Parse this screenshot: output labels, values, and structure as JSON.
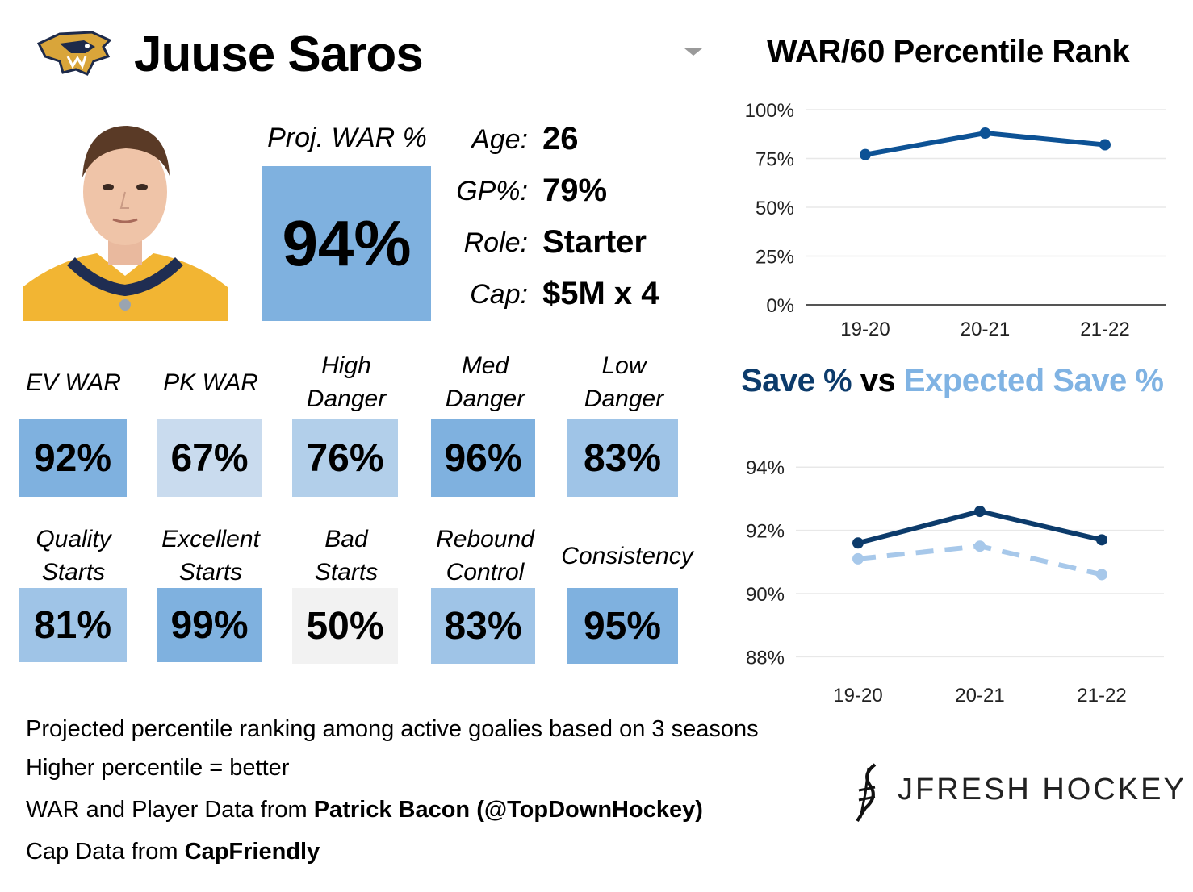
{
  "player": {
    "name": "Juuse Saros",
    "team_logo": "predators-logo",
    "photo": "player-headshot"
  },
  "projected": {
    "label": "Proj. WAR %",
    "value": "94%",
    "color": "#7fb1df"
  },
  "info": [
    {
      "label": "Age:",
      "value": "26"
    },
    {
      "label": "GP%:",
      "value": "79%"
    },
    {
      "label": "Role:",
      "value": "Starter"
    },
    {
      "label": "Cap:",
      "value": "$5M x 4"
    }
  ],
  "stats_row1": [
    {
      "label_lines": [
        "EV WAR"
      ],
      "value": "92%",
      "color": "#7fb1df"
    },
    {
      "label_lines": [
        "PK WAR"
      ],
      "value": "67%",
      "color": "#c9dbee"
    },
    {
      "label_lines": [
        "High",
        "Danger"
      ],
      "value": "76%",
      "color": "#b2cfea"
    },
    {
      "label_lines": [
        "Med",
        "Danger"
      ],
      "value": "96%",
      "color": "#7fb1df"
    },
    {
      "label_lines": [
        "Low",
        "Danger"
      ],
      "value": "83%",
      "color": "#9fc4e7"
    }
  ],
  "stats_row2": [
    {
      "label_lines": [
        "Quality",
        "Starts"
      ],
      "value": "81%",
      "color": "#9fc4e7"
    },
    {
      "label_lines": [
        "Excellent",
        "Starts"
      ],
      "value": "99%",
      "color": "#7fb1df"
    },
    {
      "label_lines": [
        "Bad",
        "Starts"
      ],
      "value": "50%",
      "color": "#f2f2f2"
    },
    {
      "label_lines": [
        "Rebound",
        "Control"
      ],
      "value": "83%",
      "color": "#9fc4e7"
    },
    {
      "label_lines": [
        "Consistency"
      ],
      "value": "95%",
      "color": "#7fb1df"
    }
  ],
  "chart_data": [
    {
      "type": "line",
      "title": "WAR/60 Percentile Rank",
      "categories": [
        "19-20",
        "20-21",
        "21-22"
      ],
      "series": [
        {
          "name": "WAR/60 Percentile",
          "values": [
            77,
            88,
            82
          ],
          "color": "#0d5295"
        }
      ],
      "ylim": [
        0,
        100
      ],
      "yticks": [
        0,
        25,
        50,
        75,
        100
      ],
      "ytick_labels": [
        "0%",
        "25%",
        "50%",
        "75%",
        "100%"
      ],
      "grid": true
    },
    {
      "type": "line",
      "title": "Save % vs Expected Save %",
      "title_parts": [
        {
          "text": "Save %",
          "color": "#0c3b6b"
        },
        {
          "text": " vs ",
          "color": "#000000"
        },
        {
          "text": "Expected Save %",
          "color": "#80b3e3"
        }
      ],
      "categories": [
        "19-20",
        "20-21",
        "21-22"
      ],
      "series": [
        {
          "name": "Save %",
          "values": [
            91.6,
            92.6,
            91.7
          ],
          "color": "#0c3b6b",
          "style": "solid"
        },
        {
          "name": "Expected Save %",
          "values": [
            91.1,
            91.5,
            90.6
          ],
          "color": "#a7c8ea",
          "style": "dashed"
        }
      ],
      "ylim": [
        87.5,
        95.0
      ],
      "yticks": [
        88,
        90,
        92,
        94
      ],
      "ytick_labels": [
        "88%",
        "90%",
        "92%",
        "94%"
      ],
      "grid": true
    }
  ],
  "footnotes": [
    {
      "text": "Projected percentile ranking among active goalies based on 3 seasons",
      "bold": ""
    },
    {
      "text": "Higher percentile = better",
      "bold": ""
    },
    {
      "text": "WAR and Player Data from ",
      "bold": "Patrick Bacon (@TopDownHockey)"
    },
    {
      "text": "Cap Data from ",
      "bold": "CapFriendly"
    }
  ],
  "brand": {
    "name": "JFRESH HOCKEY"
  }
}
